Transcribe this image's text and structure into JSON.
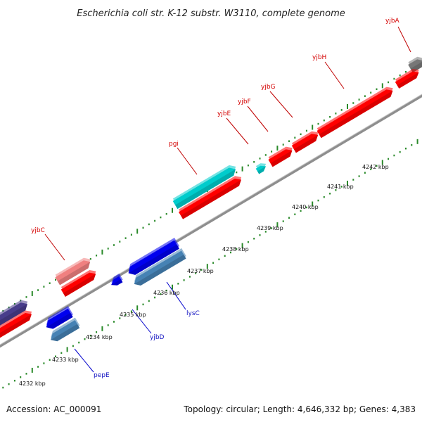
{
  "title": "Escherichia coli str. K-12 substr. W3110, complete genome",
  "footer": {
    "accession": "Accession: AC_000091",
    "summary": "Topology: circular; Length: 4,646,332 bp; Genes: 4,383"
  },
  "colors": {
    "backbone": "#8e8e8e",
    "tick": "#2a8a2a",
    "forward_label": "#d40000",
    "reverse_label": "#1010c0"
  },
  "scale_labels": [
    "4232 kbp",
    "4233 kbp",
    "4234 kbp",
    "4235 kbp",
    "4236 kbp",
    "4237 kbp",
    "4238 kbp",
    "4239 kbp",
    "4240 kbp",
    "4241 kbp",
    "4242 kbp"
  ],
  "gene_labels": {
    "yjbA": "yjbA",
    "yjbH": "yjbH",
    "yjbG": "yjbG",
    "yjbF": "yjbF",
    "yjbE": "yjbE",
    "pgi": "pgi",
    "yjbC": "yjbC",
    "lysC": "lysC",
    "yjbD": "yjbD",
    "pepE": "pepE"
  },
  "features": [
    {
      "id": "yjbA",
      "strand": "+",
      "color": "#777777"
    },
    {
      "id": "yjbH",
      "strand": "+",
      "color": "#ff0000"
    },
    {
      "id": "yjbG",
      "strand": "+",
      "color": "#ff0000"
    },
    {
      "id": "yjbF",
      "strand": "+",
      "color": "#ff0000"
    },
    {
      "id": "yjbE",
      "strand": "+",
      "color": "#ff0000"
    },
    {
      "id": "pgi",
      "strand": "+",
      "color": "#ff0000"
    },
    {
      "id": "pgi-cds",
      "strand": "+",
      "color": "#00cccc"
    },
    {
      "id": "yjbC",
      "strand": "+",
      "color": "#ff0000"
    },
    {
      "id": "yjbC-cds",
      "strand": "+",
      "color": "#f08080"
    },
    {
      "id": "lysC",
      "strand": "-",
      "color": "#0000ee"
    },
    {
      "id": "lysC-cds",
      "strand": "-",
      "color": "#4682b4"
    },
    {
      "id": "yjbD",
      "strand": "-",
      "color": "#0000ee"
    },
    {
      "id": "pepE",
      "strand": "-",
      "color": "#0000ee"
    },
    {
      "id": "pepE-cds",
      "strand": "-",
      "color": "#4682b4"
    },
    {
      "id": "left-forward",
      "strand": "+",
      "color": "#ff0000"
    },
    {
      "id": "left-dark",
      "strand": "+",
      "color": "#483d8b"
    }
  ]
}
